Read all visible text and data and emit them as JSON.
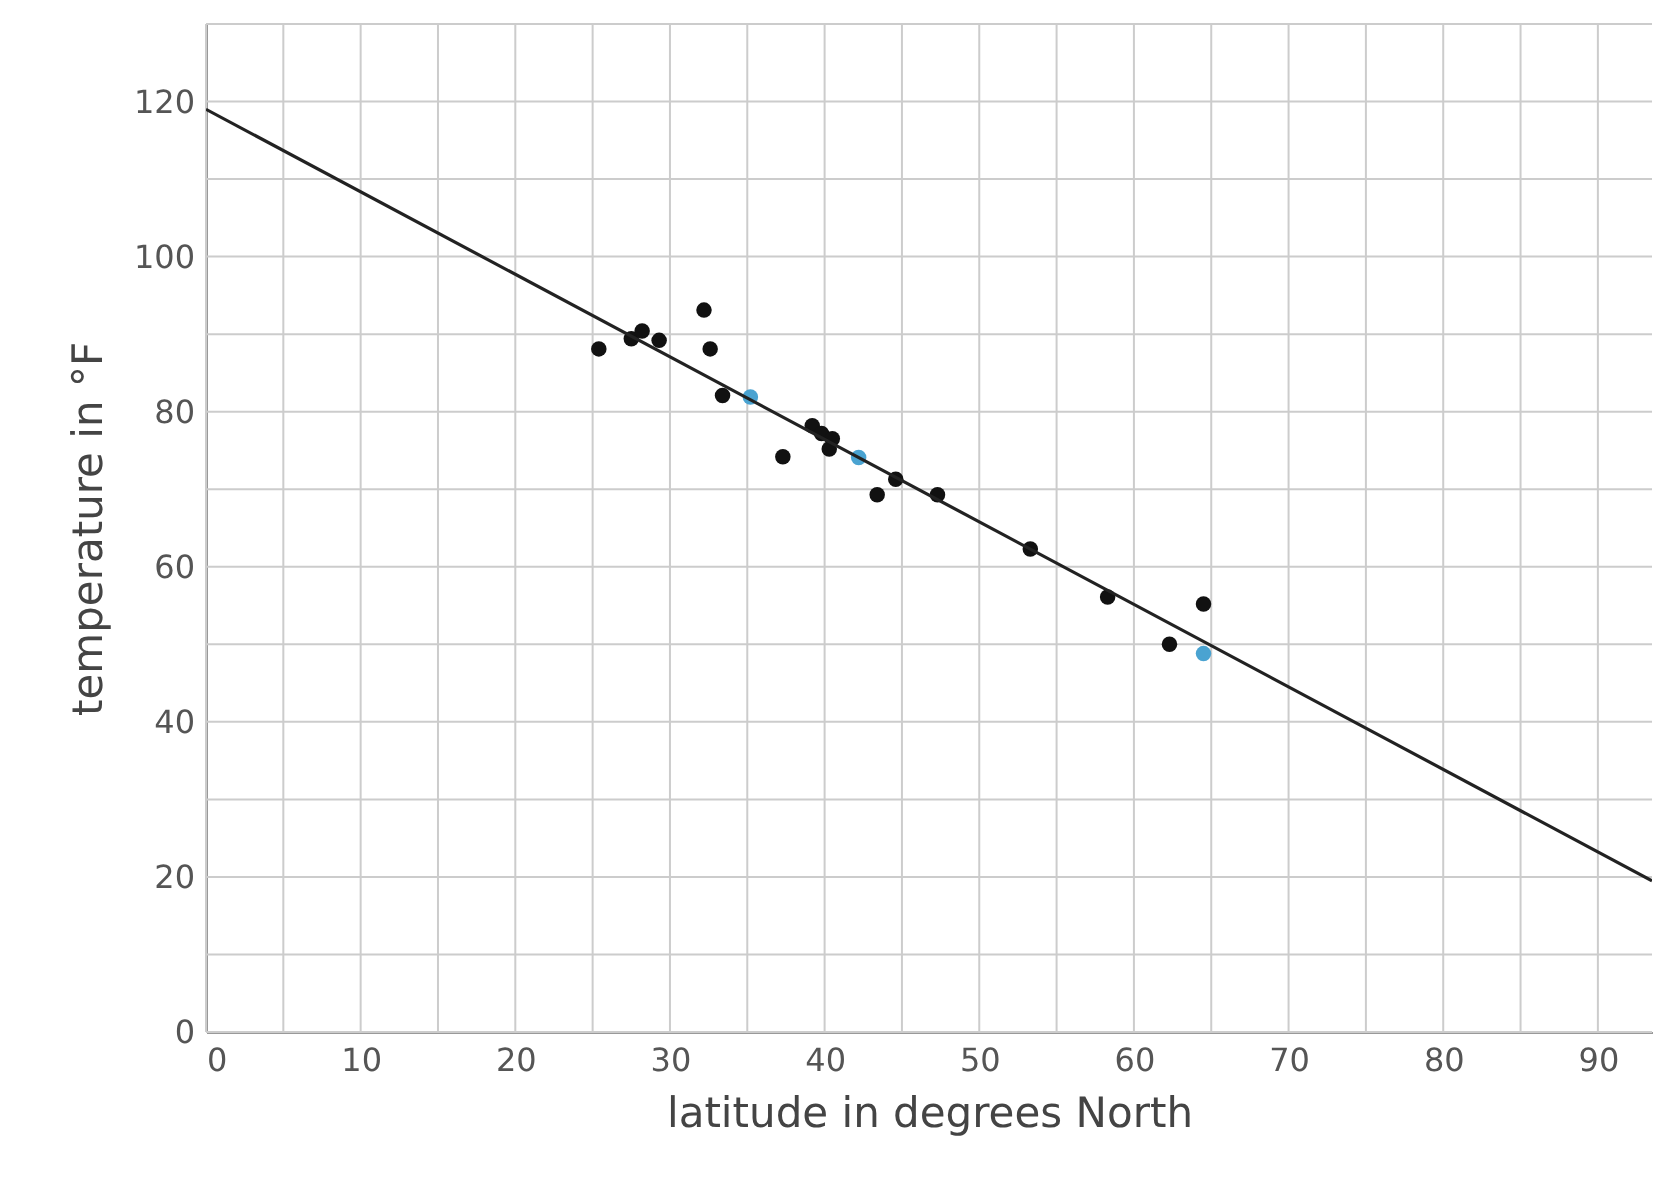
{
  "chart_data": {
    "type": "scatter",
    "xlabel": "latitude in degrees North",
    "ylabel": "temperature in °F",
    "xlim": [
      0,
      93.5
    ],
    "ylim": [
      0,
      130
    ],
    "xticks": [
      0,
      {
        "value": 5,
        "label": null
      },
      10,
      {
        "value": 15,
        "label": null
      },
      20,
      {
        "value": 25,
        "label": null
      },
      30,
      {
        "value": 35,
        "label": null
      },
      40,
      {
        "value": 45,
        "label": null
      },
      50,
      {
        "value": 55,
        "label": null
      },
      60,
      {
        "value": 65,
        "label": null
      },
      70,
      {
        "value": 75,
        "label": null
      },
      80,
      {
        "value": 85,
        "label": null
      },
      90
    ],
    "yticks": [
      0,
      {
        "value": 10,
        "label": null
      },
      20,
      {
        "value": 30,
        "label": null
      },
      40,
      {
        "value": 50,
        "label": null
      },
      60,
      {
        "value": 70,
        "label": null
      },
      80,
      {
        "value": 90,
        "label": null
      },
      100,
      {
        "value": 110,
        "label": null
      },
      120,
      {
        "value": 130,
        "label": null
      }
    ],
    "grid": true,
    "series": [
      {
        "marker": "circle",
        "color": "#111111",
        "x": [
          25.4,
          27.5,
          28.2,
          29.3,
          32.2,
          32.6,
          33.4,
          37.3,
          39.2,
          39.8,
          40.5,
          40.3,
          44.6,
          43.4,
          47.3,
          53.3,
          58.3,
          64.5,
          62.3
        ],
        "values": [
          88.1,
          89.4,
          90.4,
          89.2,
          93.1,
          88.1,
          82.1,
          74.2,
          78.2,
          77.2,
          76.5,
          75.2,
          71.3,
          69.3,
          69.3,
          62.3,
          56.1,
          55.2,
          50.0
        ]
      },
      {
        "marker": "circle",
        "color": "#4aa3d1",
        "x": [
          35.2,
          42.2,
          64.5
        ],
        "values": [
          81.9,
          74.1,
          48.8
        ]
      },
      {
        "type": "line",
        "color": "#222222",
        "x": [
          0,
          93.5
        ],
        "values": [
          119,
          19.5
        ]
      }
    ]
  }
}
